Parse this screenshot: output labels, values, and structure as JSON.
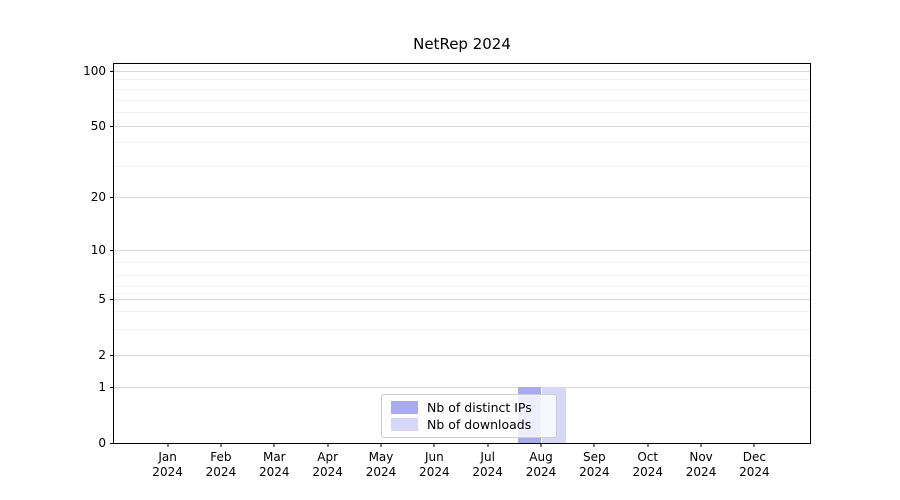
{
  "chart_data": {
    "type": "bar",
    "title": "NetRep 2024",
    "xlabel": "",
    "ylabel": "",
    "yscale": "symlog",
    "ylim": [
      0,
      110
    ],
    "y_ticks": [
      0,
      1,
      2,
      5,
      10,
      20,
      50,
      100
    ],
    "y_minor_gridlines": [
      3,
      4,
      6,
      7,
      8,
      9,
      30,
      40,
      60,
      70,
      80,
      90
    ],
    "grid": "horizontal major and minor, light gray",
    "legend_position": "inside bottom-center",
    "categories": [
      {
        "month": "Jan",
        "year": "2024"
      },
      {
        "month": "Feb",
        "year": "2024"
      },
      {
        "month": "Mar",
        "year": "2024"
      },
      {
        "month": "Apr",
        "year": "2024"
      },
      {
        "month": "May",
        "year": "2024"
      },
      {
        "month": "Jun",
        "year": "2024"
      },
      {
        "month": "Jul",
        "year": "2024"
      },
      {
        "month": "Aug",
        "year": "2024"
      },
      {
        "month": "Sep",
        "year": "2024"
      },
      {
        "month": "Oct",
        "year": "2024"
      },
      {
        "month": "Nov",
        "year": "2024"
      },
      {
        "month": "Dec",
        "year": "2024"
      }
    ],
    "series": [
      {
        "name": "Nb of distinct IPs",
        "color": "#aaaaef",
        "values": [
          0,
          0,
          0,
          0,
          0,
          0,
          0,
          1,
          0,
          0,
          0,
          0
        ]
      },
      {
        "name": "Nb of downloads",
        "color": "#d7d7f8",
        "values": [
          0,
          0,
          0,
          0,
          0,
          0,
          0,
          1,
          0,
          0,
          0,
          0
        ]
      }
    ]
  },
  "colors": {
    "frame": "#000000",
    "major_grid": "#d9d9d9",
    "minor_grid": "#f2f2f2",
    "legend_border": "#cccccc",
    "text": "#000000"
  }
}
